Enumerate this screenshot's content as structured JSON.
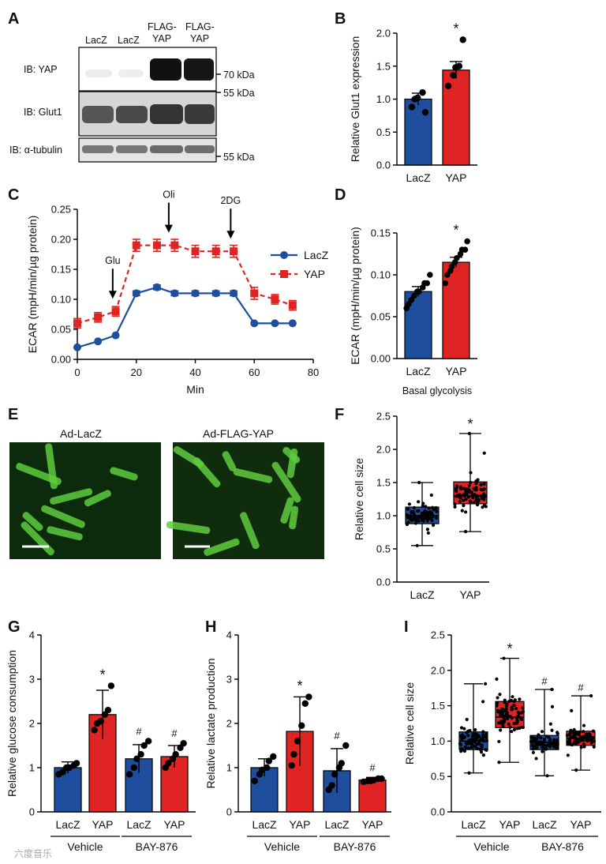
{
  "colors": {
    "lacz": "#1f4e9e",
    "yap": "#e02424",
    "fluor": "#5ecb3e"
  },
  "panels": {
    "A": {
      "label": "A",
      "lanes": [
        [
          "LacZ"
        ],
        [
          "LacZ"
        ],
        [
          "FLAG-",
          "YAP"
        ],
        [
          "FLAG-",
          "YAP"
        ]
      ],
      "blots": [
        "IB: YAP",
        "IB: Glut1",
        "IB: α-tubulin"
      ],
      "markers": [
        "70 kDa",
        "55 kDa",
        "55 kDa"
      ]
    },
    "B": {
      "label": "B"
    },
    "C": {
      "label": "C"
    },
    "D": {
      "label": "D"
    },
    "E": {
      "label": "E",
      "images": [
        "Ad-LacZ",
        "Ad-FLAG-YAP"
      ]
    },
    "F": {
      "label": "F"
    },
    "G": {
      "label": "G"
    },
    "H": {
      "label": "H"
    },
    "I": {
      "label": "I"
    }
  },
  "watermark": "六度音乐",
  "chart_data": [
    {
      "id": "B",
      "type": "bar",
      "categories": [
        "LacZ",
        "YAP"
      ],
      "values": [
        1.0,
        1.44
      ],
      "errors": [
        0.09,
        0.13
      ],
      "points": [
        [
          0.88,
          1.0,
          1.02,
          1.1,
          0.8
        ],
        [
          1.2,
          1.36,
          1.48,
          1.5,
          1.9
        ]
      ],
      "ylabel": "Relative Glut1 expression",
      "ylim": [
        0,
        2.0
      ],
      "yticks": [
        "0.0",
        "0.5",
        "1.0",
        "1.5",
        "2.0"
      ],
      "significance": [
        "",
        "*"
      ]
    },
    {
      "id": "C",
      "type": "line",
      "x": [
        0,
        7,
        13,
        20,
        27,
        33,
        40,
        47,
        53,
        60,
        67,
        73
      ],
      "series": [
        {
          "name": "LacZ",
          "values": [
            0.02,
            0.03,
            0.04,
            0.11,
            0.12,
            0.11,
            0.11,
            0.11,
            0.11,
            0.06,
            0.06,
            0.06
          ],
          "errors": [
            0,
            0,
            0,
            0.004,
            0.004,
            0.004,
            0.004,
            0.004,
            0.004,
            0,
            0,
            0
          ]
        },
        {
          "name": "YAP",
          "values": [
            0.06,
            0.07,
            0.08,
            0.19,
            0.19,
            0.19,
            0.18,
            0.18,
            0.18,
            0.11,
            0.1,
            0.09
          ],
          "errors": [
            0.008,
            0.008,
            0.008,
            0.01,
            0.01,
            0.01,
            0.01,
            0.01,
            0.01,
            0.01,
            0.008,
            0.008
          ]
        }
      ],
      "xlabel": "Min",
      "ylabel": "ECAR (mpH/min/µg protein)",
      "xlim": [
        0,
        80
      ],
      "ylim": [
        0,
        0.25
      ],
      "xticks": [
        "0",
        "20",
        "40",
        "60",
        "80"
      ],
      "yticks": [
        "0.00",
        "0.05",
        "0.10",
        "0.15",
        "0.20",
        "0.25"
      ],
      "annotations": [
        {
          "text": "Glu",
          "x": 12
        },
        {
          "text": "Oli",
          "x": 31
        },
        {
          "text": "2DG",
          "x": 52
        }
      ],
      "legend": "right"
    },
    {
      "id": "D",
      "type": "bar",
      "categories": [
        "LacZ",
        "YAP"
      ],
      "values": [
        0.08,
        0.115
      ],
      "errors": [
        0.006,
        0.006
      ],
      "points": [
        [
          0.06,
          0.065,
          0.07,
          0.075,
          0.08,
          0.08,
          0.085,
          0.09,
          0.09,
          0.1
        ],
        [
          0.09,
          0.1,
          0.105,
          0.11,
          0.115,
          0.12,
          0.125,
          0.13,
          0.13,
          0.14
        ]
      ],
      "ylabel": "ECAR (mpH/min/µg protein)",
      "xlabel": "Basal glycolysis",
      "ylim": [
        0,
        0.15
      ],
      "yticks": [
        "0.00",
        "0.05",
        "0.10",
        "0.15"
      ],
      "significance": [
        "",
        "*"
      ]
    },
    {
      "id": "F",
      "type": "box",
      "categories": [
        "LacZ",
        "YAP"
      ],
      "stats": [
        {
          "min": 0.55,
          "q1": 0.88,
          "median": 1.0,
          "q3": 1.13,
          "max": 1.5
        },
        {
          "min": 0.76,
          "q1": 1.18,
          "median": 1.3,
          "q3": 1.51,
          "max": 2.24
        }
      ],
      "ylabel": "Relative cell size",
      "ylim": [
        0,
        2.5
      ],
      "yticks": [
        "0.0",
        "0.5",
        "1.0",
        "1.5",
        "2.0",
        "2.5"
      ],
      "significance": [
        "",
        "*"
      ]
    },
    {
      "id": "G",
      "type": "bar",
      "categories": [
        "LacZ",
        "YAP",
        "LacZ",
        "YAP"
      ],
      "groups": [
        "Vehicle",
        "BAY-876"
      ],
      "values": [
        1.0,
        2.2,
        1.2,
        1.25
      ],
      "errors": [
        0.13,
        0.55,
        0.32,
        0.25
      ],
      "points": [
        [
          0.85,
          0.9,
          1.0,
          1.0,
          1.05,
          1.1
        ],
        [
          1.85,
          2.0,
          2.05,
          2.2,
          2.3,
          2.85
        ],
        [
          0.85,
          1.0,
          1.2,
          1.3,
          1.5,
          1.6
        ],
        [
          1.0,
          1.1,
          1.2,
          1.3,
          1.45,
          1.55
        ]
      ],
      "ylabel": "Relative glucose consumption",
      "ylim": [
        0,
        4
      ],
      "yticks": [
        "0",
        "1",
        "2",
        "3",
        "4"
      ],
      "significance": [
        "",
        "*",
        "#",
        "#"
      ]
    },
    {
      "id": "H",
      "type": "bar",
      "categories": [
        "LacZ",
        "YAP",
        "LacZ",
        "YAP"
      ],
      "groups": [
        "Vehicle",
        "BAY-876"
      ],
      "values": [
        1.0,
        1.82,
        0.93,
        0.72
      ],
      "errors": [
        0.2,
        0.78,
        0.5,
        0.06
      ],
      "points": [
        [
          0.7,
          0.85,
          0.95,
          1.0,
          1.15,
          1.25
        ],
        [
          1.05,
          1.3,
          1.6,
          1.95,
          2.45,
          2.6
        ],
        [
          0.5,
          0.6,
          0.85,
          1.0,
          1.1,
          1.5
        ],
        [
          0.68,
          0.7,
          0.7,
          0.72,
          0.75,
          0.75
        ]
      ],
      "ylabel": "Relative lactate production",
      "ylim": [
        0,
        4
      ],
      "yticks": [
        "0",
        "1",
        "2",
        "3",
        "4"
      ],
      "significance": [
        "",
        "*",
        "#",
        "#"
      ]
    },
    {
      "id": "I",
      "type": "box",
      "categories": [
        "LacZ",
        "YAP",
        "LacZ",
        "YAP"
      ],
      "groups": [
        "Vehicle",
        "BAY-876"
      ],
      "stats": [
        {
          "min": 0.55,
          "q1": 0.88,
          "median": 1.0,
          "q3": 1.13,
          "max": 1.81
        },
        {
          "min": 0.7,
          "q1": 1.19,
          "median": 1.34,
          "q3": 1.56,
          "max": 2.17
        },
        {
          "min": 0.51,
          "q1": 0.88,
          "median": 0.98,
          "q3": 1.08,
          "max": 1.73
        },
        {
          "min": 0.59,
          "q1": 0.94,
          "median": 1.04,
          "q3": 1.14,
          "max": 1.64
        }
      ],
      "ylabel": "Relative cell size",
      "ylim": [
        0,
        2.5
      ],
      "yticks": [
        "0.0",
        "0.5",
        "1.0",
        "1.5",
        "2.0",
        "2.5"
      ],
      "significance": [
        "",
        "*",
        "#",
        "#"
      ]
    }
  ]
}
